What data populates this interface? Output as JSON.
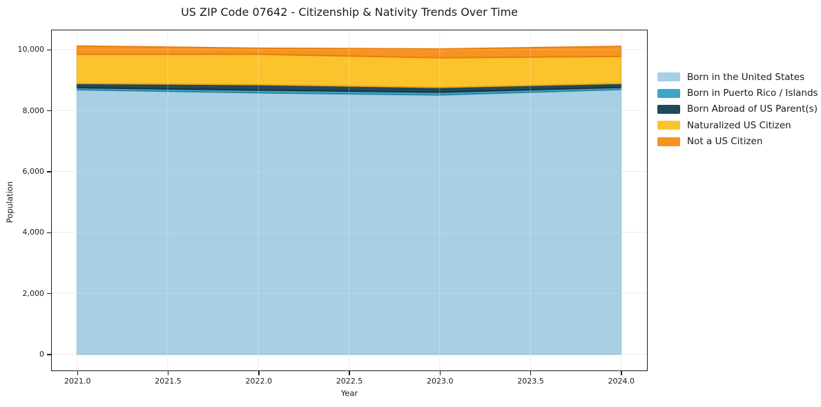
{
  "chart_data": {
    "type": "area",
    "stacked": true,
    "title": "US ZIP Code 07642 - Citizenship & Nativity Trends Over Time",
    "xlabel": "Year",
    "ylabel": "Population",
    "x": [
      2021,
      2022,
      2023,
      2024
    ],
    "series": [
      {
        "name": "Born in the United States",
        "color": "#a7d0e4",
        "edge_color": "#8fc2dc",
        "values": [
          8680,
          8580,
          8510,
          8690
        ]
      },
      {
        "name": "Born in Puerto Rico / Islands",
        "color": "#3fa5c5",
        "edge_color": "#2f86a3",
        "values": [
          70,
          90,
          90,
          70
        ]
      },
      {
        "name": "Born Abroad of US Parent(s)",
        "color": "#20495c",
        "edge_color": "#16323f",
        "values": [
          140,
          180,
          160,
          130
        ]
      },
      {
        "name": "Naturalized US Citizen",
        "color": "#fcc32d",
        "edge_color": "#f0a810",
        "values": [
          955,
          995,
          970,
          885
        ]
      },
      {
        "name": "Not a US Citizen",
        "color": "#f79421",
        "edge_color": "#e67e0d",
        "values": [
          270,
          200,
          290,
          330
        ]
      }
    ],
    "totals": [
      10115,
      10045,
      10020,
      10105
    ],
    "xticks": [
      "2021.0",
      "2021.5",
      "2022.0",
      "2022.5",
      "2023.0",
      "2023.5",
      "2024.0"
    ],
    "xtick_values": [
      2021,
      2021.5,
      2022,
      2022.5,
      2023,
      2023.5,
      2024
    ],
    "yticks": [
      "0",
      "2,000",
      "4,000",
      "6,000",
      "8,000",
      "10,000"
    ],
    "ytick_values": [
      0,
      2000,
      4000,
      6000,
      8000,
      10000
    ],
    "xlim": [
      2020.86,
      2024.14
    ],
    "ylim": [
      -510,
      10630
    ],
    "grid": true,
    "grid_color": "#e7e7e7",
    "spine_color": "#1a1a1a",
    "legend_position": "right",
    "legend_frame": false
  }
}
